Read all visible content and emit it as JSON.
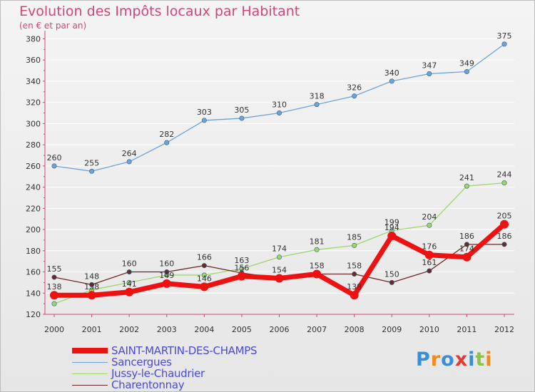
{
  "title": "Evolution des Impôts locaux par Habitant",
  "subtitle": "(en € et par an)",
  "logo_text": "Proxiti",
  "colors": {
    "title": "#d2457d",
    "axis": "#d2457d",
    "grid": "#ffffff",
    "tick_text": "#333333",
    "legend_text": "#4a4ad8",
    "logo_letters": [
      "#3a8fd4",
      "#f28a1e",
      "#3a8fd4",
      "#e6392f",
      "#3a8fd4",
      "#8cc63f",
      "#f28a1e"
    ]
  },
  "chart_data": {
    "type": "line",
    "title": "Evolution des Impôts locaux par Habitant",
    "subtitle": "(en € et par an)",
    "xlabel": "",
    "ylabel": "",
    "x": [
      "2000",
      "2001",
      "2002",
      "2003",
      "2004",
      "2005",
      "2006",
      "2007",
      "2008",
      "2009",
      "2010",
      "2011",
      "2012"
    ],
    "ylim": [
      120,
      385
    ],
    "yticks": [
      120,
      140,
      160,
      180,
      200,
      220,
      240,
      260,
      280,
      300,
      320,
      340,
      360,
      380
    ],
    "grid": true,
    "legend_position": "bottom-left",
    "series": [
      {
        "name": "SAINT-MARTIN-DES-CHAMPS",
        "color": "#ee1111",
        "values": [
          138,
          138,
          141,
          149,
          146,
          156,
          154,
          158,
          138,
          194,
          176,
          174,
          205
        ],
        "labels": [
          "138",
          "138",
          "141",
          "149",
          "146",
          "156",
          "154",
          "158",
          "138",
          "194",
          "176",
          "174",
          "205"
        ],
        "thick": true
      },
      {
        "name": "Sancergues",
        "color": "#6ea3d8",
        "values": [
          260,
          255,
          264,
          282,
          303,
          305,
          310,
          318,
          326,
          340,
          347,
          349,
          375
        ],
        "labels": [
          "260",
          "255",
          "264",
          "282",
          "303",
          "305",
          "310",
          "318",
          "326",
          "340",
          "347",
          "349",
          "375"
        ],
        "thick": false
      },
      {
        "name": "Jussy-le-Chaudrier",
        "color": "#9dd66b",
        "values": [
          130,
          143,
          150,
          157,
          157,
          163,
          174,
          181,
          185,
          199,
          204,
          241,
          244
        ],
        "labels": [
          "",
          "",
          "",
          "",
          "",
          "163",
          "174",
          "181",
          "185",
          "199",
          "204",
          "241",
          "244"
        ],
        "thick": false
      },
      {
        "name": "Charentonnay",
        "color": "#6b2a2a",
        "values": [
          155,
          148,
          160,
          160,
          166,
          159,
          154,
          158,
          158,
          150,
          161,
          186,
          186
        ],
        "labels": [
          "155",
          "148",
          "160",
          "160",
          "166",
          "",
          "",
          "",
          "158",
          "150",
          "161",
          "186",
          "186"
        ],
        "thick": false
      }
    ]
  }
}
